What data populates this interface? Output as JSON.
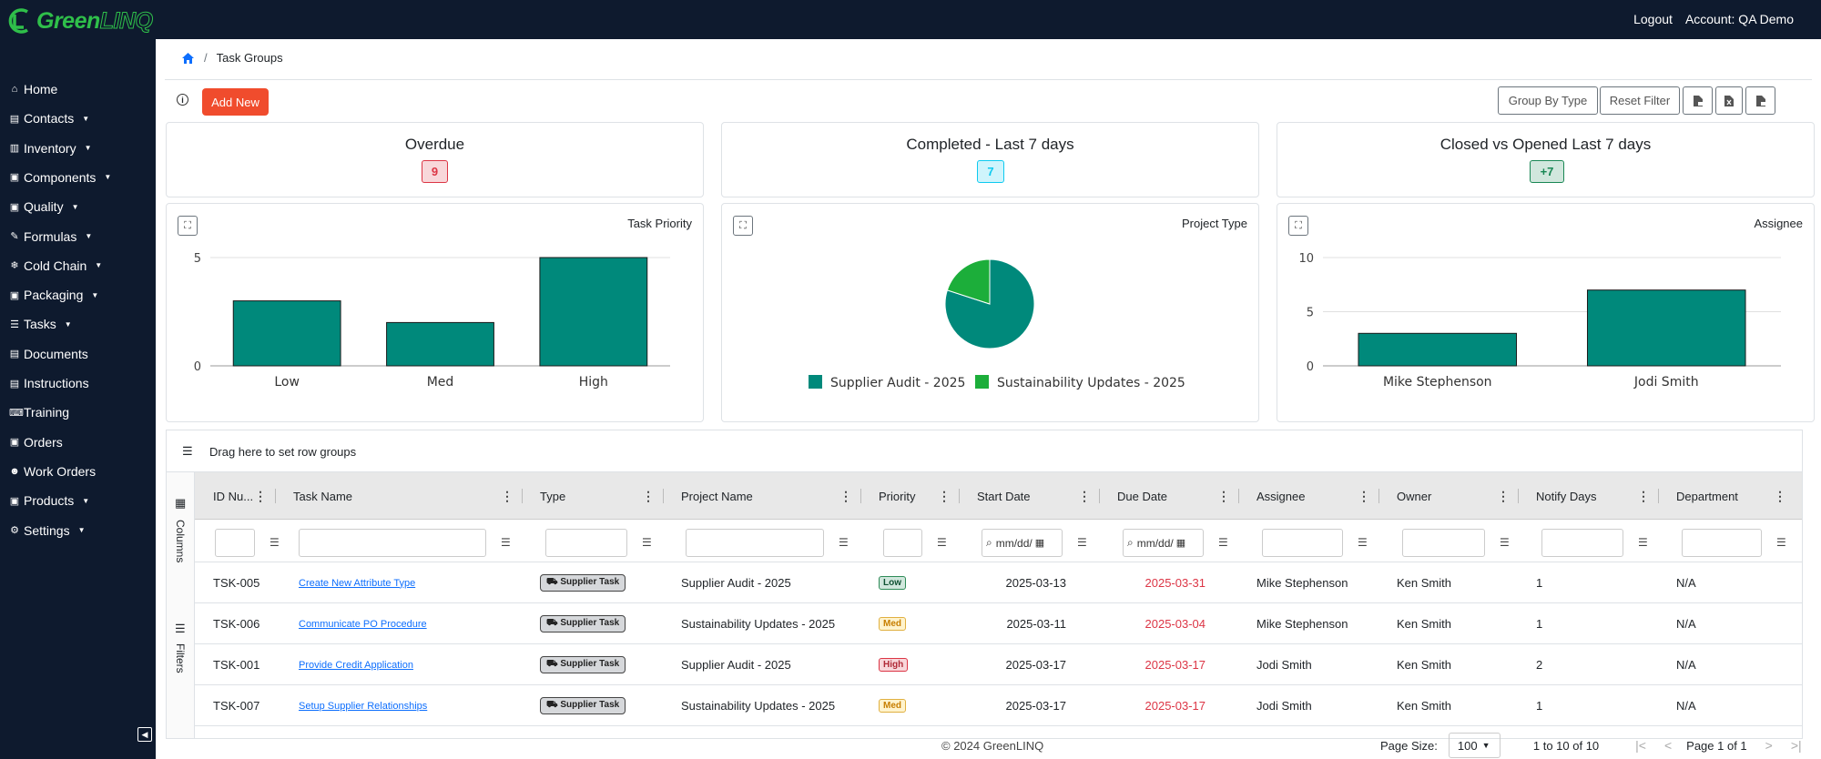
{
  "app": {
    "logo_green": "Green",
    "logo_linq": "LINQ"
  },
  "topbar": {
    "logout": "Logout",
    "account": "Account: QA Demo"
  },
  "sidebar": {
    "items": [
      {
        "label": "Home",
        "icon": "house-icon",
        "glyph": "⌂",
        "caret": false
      },
      {
        "label": "Contacts",
        "icon": "contact-icon",
        "glyph": "▤",
        "caret": true
      },
      {
        "label": "Inventory",
        "icon": "chart-icon",
        "glyph": "▥",
        "caret": true
      },
      {
        "label": "Components",
        "icon": "box-icon",
        "glyph": "▣",
        "caret": true
      },
      {
        "label": "Quality",
        "icon": "clipboard-icon",
        "glyph": "▣",
        "caret": true
      },
      {
        "label": "Formulas",
        "icon": "pencil-icon",
        "glyph": "✎",
        "caret": true
      },
      {
        "label": "Cold Chain",
        "icon": "snowflake-icon",
        "glyph": "❄",
        "caret": true
      },
      {
        "label": "Packaging",
        "icon": "package-icon",
        "glyph": "▣",
        "caret": true
      },
      {
        "label": "Tasks",
        "icon": "list-icon",
        "glyph": "☰",
        "caret": true
      },
      {
        "label": "Documents",
        "icon": "document-icon",
        "glyph": "▤",
        "caret": false
      },
      {
        "label": "Instructions",
        "icon": "instructions-icon",
        "glyph": "▤",
        "caret": false
      },
      {
        "label": "Training",
        "icon": "training-icon",
        "glyph": "⌨",
        "caret": false
      },
      {
        "label": "Orders",
        "icon": "bag-icon",
        "glyph": "▣",
        "caret": false
      },
      {
        "label": "Work Orders",
        "icon": "users-icon",
        "glyph": "☻",
        "caret": false
      },
      {
        "label": "Products",
        "icon": "products-icon",
        "glyph": "▣",
        "caret": true
      },
      {
        "label": "Settings",
        "icon": "gear-icon",
        "glyph": "⚙",
        "caret": true
      }
    ]
  },
  "breadcrumb": {
    "sep": "/",
    "current": "Task Groups"
  },
  "toolbar": {
    "add_new": "Add New",
    "group_by_type": "Group By Type",
    "reset_filter": "Reset Filter"
  },
  "kpis": [
    {
      "title": "Overdue",
      "value": "9",
      "color": "#dc3545"
    },
    {
      "title": "Completed - Last 7 days",
      "value": "7",
      "color": "#0dcaf0"
    },
    {
      "title": "Closed vs Opened Last 7 days",
      "value": "+7",
      "color": "#198754"
    }
  ],
  "chart_data": [
    {
      "type": "bar",
      "title": "Task Priority",
      "categories": [
        "Low",
        "Med",
        "High"
      ],
      "values": [
        3,
        2,
        5
      ],
      "ylim": [
        0,
        5
      ],
      "yticks": [
        0,
        5
      ],
      "color": "#00897b",
      "grid": true
    },
    {
      "type": "pie",
      "title": "Project Type",
      "labels": [
        "Supplier Audit - 2025",
        "Sustainability Updates - 2025"
      ],
      "values": [
        8,
        2
      ],
      "colors": [
        "#00897b",
        "#1cae3a"
      ],
      "legend": "bottom"
    },
    {
      "type": "bar",
      "title": "Assignee",
      "categories": [
        "Mike Stephenson",
        "Jodi Smith"
      ],
      "values": [
        3,
        7
      ],
      "ylim": [
        0,
        10
      ],
      "yticks": [
        0,
        5,
        10
      ],
      "color": "#00897b",
      "grid": true
    }
  ],
  "grid": {
    "rowgroup_hint": "Drag here to set row groups",
    "side_columns": "Columns",
    "side_filters": "Filters",
    "date_placeholder": "mm/dd/",
    "columns": [
      "ID Nu...",
      "Task Name",
      "Type",
      "Project Name",
      "Priority",
      "Start Date",
      "Due Date",
      "Assignee",
      "Owner",
      "Notify Days",
      "Department"
    ],
    "rows": [
      {
        "id": "TSK-005",
        "task": "Create New Attribute Type",
        "type": "Supplier Task",
        "project": "Supplier Audit - 2025",
        "priority": "Low",
        "start": "2025-03-13",
        "due": "2025-03-31",
        "assignee": "Mike Stephenson",
        "owner": "Ken Smith",
        "notify": "1",
        "dept": "N/A"
      },
      {
        "id": "TSK-006",
        "task": "Communicate PO Procedure",
        "type": "Supplier Task",
        "project": "Sustainability Updates - 2025",
        "priority": "Med",
        "start": "2025-03-11",
        "due": "2025-03-04",
        "assignee": "Mike Stephenson",
        "owner": "Ken Smith",
        "notify": "1",
        "dept": "N/A"
      },
      {
        "id": "TSK-001",
        "task": "Provide Credit Application",
        "type": "Supplier Task",
        "project": "Supplier Audit - 2025",
        "priority": "High",
        "start": "2025-03-17",
        "due": "2025-03-17",
        "assignee": "Jodi Smith",
        "owner": "Ken Smith",
        "notify": "2",
        "dept": "N/A"
      },
      {
        "id": "TSK-007",
        "task": "Setup Supplier Relationships",
        "type": "Supplier Task",
        "project": "Sustainability Updates - 2025",
        "priority": "Med",
        "start": "2025-03-17",
        "due": "2025-03-17",
        "assignee": "Jodi Smith",
        "owner": "Ken Smith",
        "notify": "1",
        "dept": "N/A"
      }
    ]
  },
  "footer": {
    "copyright": "© 2024 GreenLINQ",
    "page_size_label": "Page Size:",
    "page_size": "100",
    "range": "1 to 10 of 10",
    "page_info": "Page 1 of 1"
  }
}
